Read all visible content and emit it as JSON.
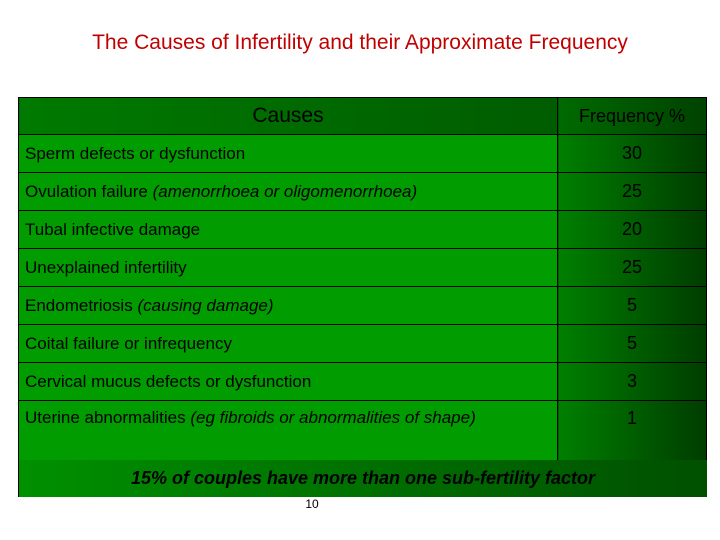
{
  "header": {
    "title": "The Causes of Infertility and their Approximate Frequency"
  },
  "table": {
    "columns": [
      "Causes",
      "Frequency %"
    ],
    "rows": [
      {
        "cause": "Sperm defects or dysfunction",
        "frequency": 30
      },
      {
        "cause": "Ovulation failure",
        "note": "(amenorrhoea or oligomenorrhoea)",
        "frequency": 25
      },
      {
        "cause": "Tubal infective damage",
        "frequency": 20
      },
      {
        "cause": "Unexplained infertility",
        "frequency": 25
      },
      {
        "cause": "Endometriosis",
        "note": "(causing damage)",
        "frequency": 5
      },
      {
        "cause": "Coital failure or infrequency",
        "frequency": 5
      },
      {
        "cause": "Cervical mucus defects or dysfunction",
        "frequency": 3
      },
      {
        "cause": "Uterine abnormalities",
        "note": "(eg fibroids or abnormalities of shape)",
        "frequency": 1
      }
    ]
  },
  "footnote": "15% of couples have more than one sub-fertility factor",
  "page_number": "10"
}
